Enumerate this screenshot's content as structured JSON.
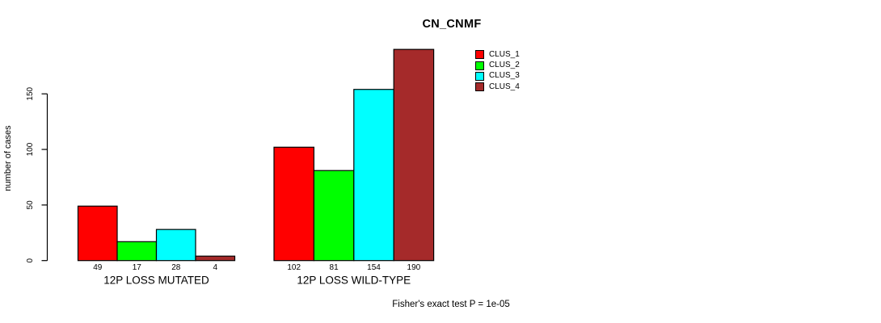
{
  "chart_data": {
    "type": "bar",
    "title": "CN_CNMF",
    "ylabel": "number of cases",
    "xlabel": "",
    "ylim": [
      0,
      190
    ],
    "yticks": [
      0,
      50,
      100,
      150
    ],
    "grid": false,
    "legend_position": "top-right",
    "bar_borders": "#000000",
    "categories": [
      "12P LOSS MUTATED",
      "12P LOSS WILD-TYPE"
    ],
    "series": [
      {
        "name": "CLUS_1",
        "color": "#FF0000",
        "values": [
          49,
          102
        ]
      },
      {
        "name": "CLUS_2",
        "color": "#00FF00",
        "values": [
          17,
          81
        ]
      },
      {
        "name": "CLUS_3",
        "color": "#00FFFF",
        "values": [
          28,
          154
        ]
      },
      {
        "name": "CLUS_4",
        "color": "#A52A2A",
        "values": [
          4,
          190
        ]
      }
    ],
    "footnote": "Fisher's exact test P = 1e-05"
  }
}
